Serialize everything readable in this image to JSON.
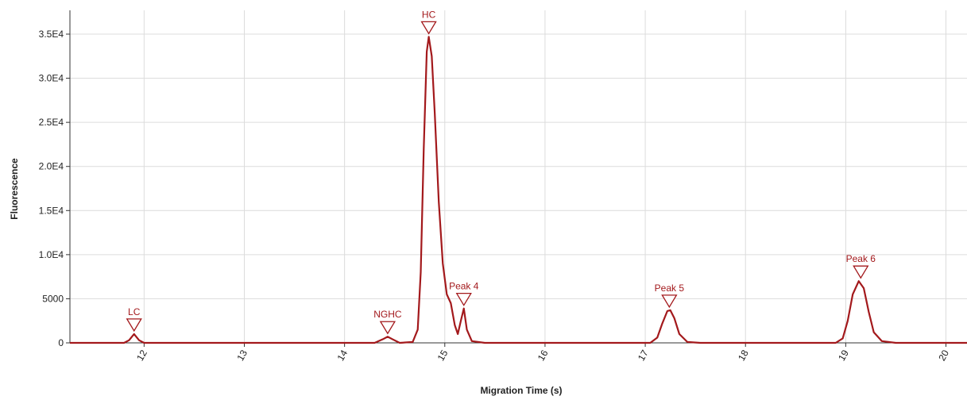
{
  "chart_data": {
    "type": "line",
    "x_label": "Migration Time (s)",
    "y_label": "Fluorescence",
    "x": [
      11.26,
      11.8,
      11.85,
      11.9,
      11.95,
      12.0,
      14.3,
      14.38,
      14.43,
      14.48,
      14.55,
      14.68,
      14.73,
      14.76,
      14.79,
      14.82,
      14.84,
      14.87,
      14.9,
      14.94,
      14.98,
      15.02,
      15.06,
      15.1,
      15.13,
      15.16,
      15.19,
      15.22,
      15.27,
      15.4,
      17.05,
      17.12,
      17.17,
      17.22,
      17.25,
      17.29,
      17.34,
      17.42,
      17.55,
      18.9,
      18.97,
      19.02,
      19.07,
      19.13,
      19.18,
      19.23,
      19.28,
      19.36,
      19.5,
      20.21
    ],
    "values": [
      0,
      0,
      300,
      1000,
      300,
      0,
      0,
      400,
      700,
      400,
      0,
      100,
      1500,
      8000,
      22000,
      33000,
      34700,
      32500,
      26000,
      16000,
      9000,
      5500,
      4500,
      2000,
      1000,
      2500,
      3900,
      1500,
      200,
      0,
      0,
      600,
      2200,
      3600,
      3700,
      2800,
      1000,
      100,
      0,
      0,
      500,
      2500,
      5500,
      7000,
      6200,
      3500,
      1200,
      200,
      0,
      0
    ],
    "color": "#a3191c",
    "annotations": [
      {
        "text": "LC",
        "x": 11.9,
        "y": 1000
      },
      {
        "text": "NGHC",
        "x": 14.43,
        "y": 700
      },
      {
        "text": "HC",
        "x": 14.84,
        "y": 34700
      },
      {
        "text": "Peak 4",
        "x": 15.19,
        "y": 3900
      },
      {
        "text": "Peak 5",
        "x": 17.24,
        "y": 3700
      },
      {
        "text": "Peak 6",
        "x": 19.15,
        "y": 7000
      }
    ],
    "xlim": [
      11.26,
      20.21
    ],
    "xticks": [
      12,
      13,
      14,
      15,
      16,
      17,
      18,
      19,
      20
    ],
    "ylim": [
      0,
      37700
    ],
    "yticks": [
      0,
      5000,
      {
        "value": 10000,
        "label": "1.0E4"
      },
      {
        "value": 15000,
        "label": "1.5E4"
      },
      {
        "value": 20000,
        "label": "2.0E4"
      },
      {
        "value": 25000,
        "label": "2.5E4"
      },
      {
        "value": 30000,
        "label": "3.0E4"
      },
      {
        "value": 35000,
        "label": "3.5E4"
      }
    ],
    "grid": true
  }
}
